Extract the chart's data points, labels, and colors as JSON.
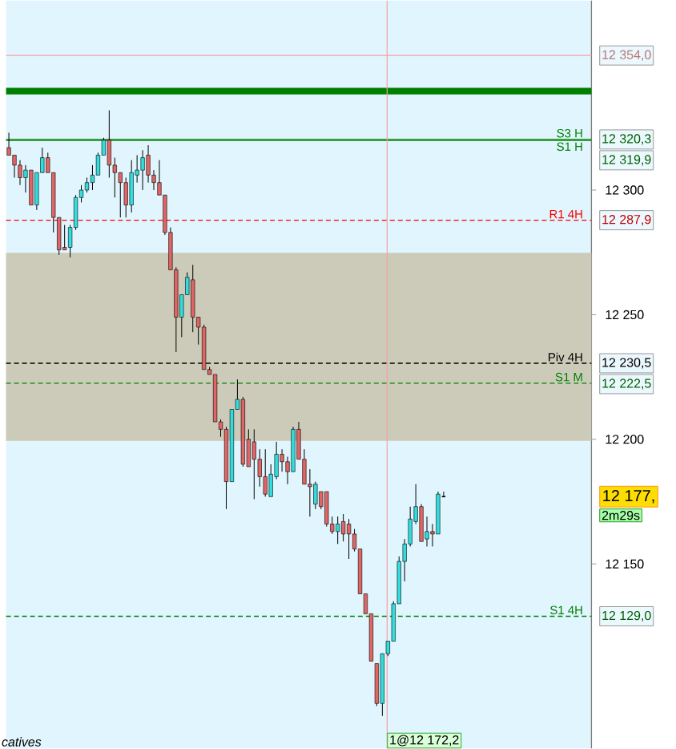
{
  "chart_data": {
    "type": "candlestick",
    "categories": [
      null,
      null,
      null,
      null,
      null,
      null,
      null,
      null,
      null,
      null,
      null,
      null,
      null,
      null,
      null,
      null,
      null,
      null,
      null,
      null,
      null,
      null,
      null,
      null,
      null,
      null,
      null,
      null,
      null,
      null,
      null,
      null,
      null,
      null,
      null,
      null,
      null,
      null,
      null,
      null,
      null,
      null,
      null,
      null,
      null,
      null,
      null,
      null,
      null,
      null,
      null,
      null,
      null,
      null,
      null,
      null,
      null,
      null,
      null,
      null,
      null,
      null,
      null,
      null,
      null,
      null,
      null,
      null,
      null,
      null,
      null,
      null,
      null,
      null,
      null,
      null,
      null,
      null,
      null,
      null,
      null,
      null,
      null,
      null,
      null,
      null,
      null,
      null,
      null,
      null,
      null,
      null,
      null,
      null,
      null,
      null,
      null,
      null,
      null,
      null,
      null,
      null,
      null,
      null,
      null
    ],
    "ohlc": [
      [
        12317,
        12323,
        12314,
        12314
      ],
      [
        12314,
        12314,
        12305,
        12310
      ],
      [
        12310,
        12312,
        12302,
        12305
      ],
      [
        12305,
        12310,
        12299,
        12308
      ],
      [
        12308,
        12308,
        12294,
        12294
      ],
      [
        12294,
        12307,
        12292,
        12307
      ],
      [
        12307,
        12317,
        12307,
        12313
      ],
      [
        12313,
        12315,
        12307,
        12307
      ],
      [
        12307,
        12307,
        12283,
        12289
      ],
      [
        12289,
        12289,
        12274,
        12276
      ],
      [
        12277,
        12286,
        12276,
        12276
      ],
      [
        12277,
        12286,
        12273,
        12285
      ],
      [
        12285,
        12298,
        12284,
        12297
      ],
      [
        12297,
        12302,
        12295,
        12300
      ],
      [
        12300,
        12305,
        12299,
        12303
      ],
      [
        12303,
        12310,
        12300,
        12306
      ],
      [
        12306,
        12315,
        12306,
        12314
      ],
      [
        12314,
        12321,
        12314,
        12320
      ],
      [
        12320,
        12332,
        12305,
        12310
      ],
      [
        12310,
        12313,
        12297,
        12307
      ],
      [
        12307,
        12307,
        12289,
        12303
      ],
      [
        12303,
        12305,
        12289,
        12294
      ],
      [
        12294,
        12312,
        12291,
        12307
      ],
      [
        12306,
        12314,
        12303,
        12308
      ],
      [
        12308,
        12316,
        12300,
        12313
      ],
      [
        12314,
        12318,
        12303,
        12306
      ],
      [
        12306,
        12308,
        12300,
        12303
      ],
      [
        12303,
        12312,
        12298,
        12298
      ],
      [
        12298,
        12298,
        12282,
        12283
      ],
      [
        12283,
        12285,
        12268,
        12268
      ],
      [
        12268,
        12269,
        12235,
        12249
      ],
      [
        12249,
        12258,
        12241,
        12258
      ],
      [
        12258,
        12267,
        12258,
        12265
      ],
      [
        12264,
        12270,
        12243,
        12249
      ],
      [
        12249,
        12249,
        12238,
        12245
      ],
      [
        12245,
        12246,
        12228,
        12228
      ],
      [
        12228,
        12229,
        12226,
        12226
      ],
      [
        12226,
        12226,
        12207,
        12207
      ],
      [
        12207,
        12208,
        12201,
        12204
      ],
      [
        12204,
        12205,
        12172,
        12183
      ],
      [
        12183,
        12212,
        12183,
        12212
      ],
      [
        12212,
        12224,
        12212,
        12216
      ],
      [
        12216,
        12217,
        12189,
        12190
      ],
      [
        12200,
        12204,
        12189,
        12189
      ],
      [
        12199,
        12204,
        12176,
        12192
      ],
      [
        12192,
        12196,
        12181,
        12185
      ],
      [
        12185,
        12196,
        12177,
        12178
      ],
      [
        12177,
        12190,
        12177,
        12186
      ],
      [
        12185,
        12199,
        12184,
        12194
      ],
      [
        12194,
        12196,
        12187,
        12191
      ],
      [
        12191,
        12193,
        12182,
        12187
      ],
      [
        12187,
        12205,
        12187,
        12204
      ],
      [
        12204,
        12207,
        12192,
        12192
      ],
      [
        12192,
        12196,
        12182,
        12182
      ],
      [
        12182,
        12188,
        12169,
        12181
      ],
      [
        12174,
        12183,
        12172,
        12182
      ],
      [
        12179,
        12179,
        12172,
        12173
      ],
      [
        12179,
        12179,
        12165,
        12166
      ],
      [
        12166,
        12169,
        12162,
        12163
      ],
      [
        12163,
        12169,
        12158,
        12166
      ],
      [
        12167,
        12170,
        12159,
        12162
      ],
      [
        12166,
        12168,
        12152,
        12162
      ],
      [
        12162,
        12164,
        12155,
        12156
      ],
      [
        12156,
        12156,
        12138,
        12138
      ],
      [
        12138,
        12138,
        12130,
        12130
      ],
      [
        12130,
        12130,
        12111,
        12111
      ],
      [
        12110,
        12110,
        12093,
        12094
      ],
      [
        12094,
        12114,
        12089,
        12114
      ],
      [
        12114,
        12119,
        12113,
        12119
      ],
      [
        12119,
        12135,
        12119,
        12134
      ],
      [
        12134,
        12153,
        12134,
        12151
      ],
      [
        12151,
        12160,
        12143,
        12158
      ],
      [
        12158,
        12173,
        12157,
        12168
      ],
      [
        12167,
        12182,
        12166,
        12173
      ],
      [
        12173,
        12174,
        12159,
        12159
      ],
      [
        12160,
        12169,
        12157,
        12163
      ],
      [
        12163,
        12166,
        12157,
        12162
      ],
      [
        12162,
        12179,
        12162,
        12178
      ],
      [
        12177,
        12179,
        12177,
        12177
      ],
      null,
      null,
      null,
      null,
      null,
      null,
      null,
      null,
      null,
      null,
      null,
      null,
      null,
      null,
      null,
      null,
      null,
      null,
      null,
      null,
      null,
      null,
      null,
      null,
      null,
      null
    ],
    "colors": [
      "#e06666",
      "#e06666",
      "#e06666",
      "#33dddd",
      "#e06666",
      "#33dddd",
      "#33dddd",
      "#e06666",
      "#e06666",
      "#e06666",
      "#e06666",
      "#33dddd",
      "#33dddd",
      "#33dddd",
      "#33dddd",
      "#33dddd",
      "#33dddd",
      "#33dddd",
      "#e06666",
      "#e06666",
      "#e06666",
      "#e06666",
      "#33dddd",
      "#33dddd",
      "#33dddd",
      "#e06666",
      "#e06666",
      "#e06666",
      "#e06666",
      "#e06666",
      "#e06666",
      "#33dddd",
      "#33dddd",
      "#e06666",
      "#e06666",
      "#e06666",
      "#e06666",
      "#e06666",
      "#e06666",
      "#e06666",
      "#33dddd",
      "#33dddd",
      "#e06666",
      "#e06666",
      "#e06666",
      "#e06666",
      "#e06666",
      "#33dddd",
      "#33dddd",
      "#e06666",
      "#e06666",
      "#33dddd",
      "#e06666",
      "#e06666",
      "#e06666",
      "#33dddd",
      "#e06666",
      "#e06666",
      "#e06666",
      "#33dddd",
      "#e06666",
      "#e06666",
      "#e06666",
      "#e06666",
      "#e06666",
      "#e06666",
      "#e06666",
      "#33dddd",
      "#33dddd",
      "#33dddd",
      "#33dddd",
      "#33dddd",
      "#33dddd",
      "#33dddd",
      "#e06666",
      "#33dddd",
      "#e06666",
      "#33dddd",
      "#000000",
      null,
      null,
      null,
      null,
      null,
      null,
      null,
      null,
      null,
      null,
      null,
      null,
      null,
      null,
      null,
      null,
      null,
      null,
      null,
      null,
      null,
      null,
      null,
      null,
      null,
      null
    ],
    "ylim": [
      12076,
      12376
    ],
    "yticks": [
      {
        "value": 12150,
        "label": "12 150"
      },
      {
        "value": 12200,
        "label": "12 200"
      },
      {
        "value": 12250,
        "label": "12 250"
      },
      {
        "value": 12300,
        "label": "12 300"
      }
    ],
    "bands": [
      {
        "axis": "y",
        "from": 12199.4,
        "to": 12274.8,
        "color": "#cccbb9"
      },
      {
        "axis": "y",
        "from": 12338.4,
        "to": 12341,
        "color": "#008000"
      }
    ],
    "ref_lines": [
      {
        "axis": "y",
        "value": 12354.0,
        "color": "#f4a0a0",
        "line_style": "solid",
        "label": "12 354,0"
      },
      {
        "axis": "y",
        "value": 12320.3,
        "color": "#008000",
        "line_style": "solid",
        "label": "12 320,3"
      },
      {
        "axis": "y",
        "value": 12319.9,
        "color": "#008000",
        "line_style": "solid",
        "label": "12 319,9"
      },
      {
        "axis": "y",
        "value": 12287.9,
        "color": "#ff0000",
        "line_style": "dashed",
        "label": "12 287,9"
      },
      {
        "axis": "y",
        "value": 12230.5,
        "color": "#000000",
        "line_style": "dashed",
        "label": "12 230,5"
      },
      {
        "axis": "y",
        "value": 12222.5,
        "color": "#008000",
        "line_style": "dashed",
        "label": "12 222,5"
      },
      {
        "axis": "y",
        "value": 12129.0,
        "color": "#008000",
        "line_style": "dashed",
        "label": "12 129,0"
      }
    ],
    "annotations": [
      "S3 H",
      "S1 H",
      "R1 4H",
      "Piv 4H",
      "S1 M",
      "S1 4H",
      "12 177,",
      "2m29s",
      "1@12 172,2",
      "catives"
    ]
  }
}
